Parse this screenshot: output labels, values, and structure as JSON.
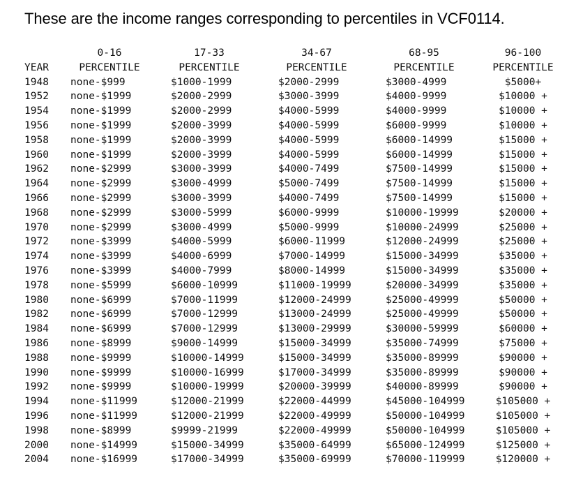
{
  "title": "These are the income ranges corresponding to percentiles in VCF0114.",
  "table": {
    "header_top": [
      "",
      "0-16",
      "17-33",
      "34-67",
      "68-95",
      "96-100"
    ],
    "header_bottom": [
      "YEAR",
      "PERCENTILE",
      "PERCENTILE",
      "PERCENTILE",
      "PERCENTILE",
      "PERCENTILE"
    ],
    "rows": [
      [
        "1948",
        "none-$999",
        "$1000-1999",
        "$2000-2999",
        "$3000-4999",
        "$5000+"
      ],
      [
        "1952",
        "none-$1999",
        "$2000-2999",
        "$3000-3999",
        "$4000-9999",
        "$10000 +"
      ],
      [
        "1954",
        "none-$1999",
        "$2000-2999",
        "$4000-5999",
        "$4000-9999",
        "$10000 +"
      ],
      [
        "1956",
        "none-$1999",
        "$2000-3999",
        "$4000-5999",
        "$6000-9999",
        "$10000 +"
      ],
      [
        "1958",
        "none-$1999",
        "$2000-3999",
        "$4000-5999",
        "$6000-14999",
        "$15000 +"
      ],
      [
        "1960",
        "none-$1999",
        "$2000-3999",
        "$4000-5999",
        "$6000-14999",
        "$15000 +"
      ],
      [
        "1962",
        "none-$2999",
        "$3000-3999",
        "$4000-7499",
        "$7500-14999",
        "$15000 +"
      ],
      [
        "1964",
        "none-$2999",
        "$3000-4999",
        "$5000-7499",
        "$7500-14999",
        "$15000 +"
      ],
      [
        "1966",
        "none-$2999",
        "$3000-3999",
        "$4000-7499",
        "$7500-14999",
        "$15000 +"
      ],
      [
        "1968",
        "none-$2999",
        "$3000-5999",
        "$6000-9999",
        "$10000-19999",
        "$20000 +"
      ],
      [
        "1970",
        "none-$2999",
        "$3000-4999",
        "$5000-9999",
        "$10000-24999",
        "$25000 +"
      ],
      [
        "1972",
        "none-$3999",
        "$4000-5999",
        "$6000-11999",
        "$12000-24999",
        "$25000 +"
      ],
      [
        "1974",
        "none-$3999",
        "$4000-6999",
        "$7000-14999",
        "$15000-34999",
        "$35000 +"
      ],
      [
        "1976",
        "none-$3999",
        "$4000-7999",
        "$8000-14999",
        "$15000-34999",
        "$35000 +"
      ],
      [
        "1978",
        "none-$5999",
        "$6000-10999",
        "$11000-19999",
        "$20000-34999",
        "$35000 +"
      ],
      [
        "1980",
        "none-$6999",
        "$7000-11999",
        "$12000-24999",
        "$25000-49999",
        "$50000 +"
      ],
      [
        "1982",
        "none-$6999",
        "$7000-12999",
        "$13000-24999",
        "$25000-49999",
        "$50000 +"
      ],
      [
        "1984",
        "none-$6999",
        "$7000-12999",
        "$13000-29999",
        "$30000-59999",
        "$60000 +"
      ],
      [
        "1986",
        "none-$8999",
        "$9000-14999",
        "$15000-34999",
        "$35000-74999",
        "$75000 +"
      ],
      [
        "1988",
        "none-$9999",
        "$10000-14999",
        "$15000-34999",
        "$35000-89999",
        "$90000 +"
      ],
      [
        "1990",
        "none-$9999",
        "$10000-16999",
        "$17000-34999",
        "$35000-89999",
        "$90000 +"
      ],
      [
        "1992",
        "none-$9999",
        "$10000-19999",
        "$20000-39999",
        "$40000-89999",
        "$90000 +"
      ],
      [
        "1994",
        "none-$11999",
        "$12000-21999",
        "$22000-44999",
        "$45000-104999",
        "$105000 +"
      ],
      [
        "1996",
        "none-$11999",
        "$12000-21999",
        "$22000-49999",
        "$50000-104999",
        "$105000 +"
      ],
      [
        "1998",
        "none-$8999",
        "$9999-21999",
        "$22000-49999",
        "$50000-104999",
        "$105000 +"
      ],
      [
        "2000",
        "none-$14999",
        "$15000-34999",
        "$35000-64999",
        "$65000-124999",
        "$125000 +"
      ],
      [
        "2004",
        "none-$16999",
        "$17000-34999",
        "$35000-69999",
        "$70000-119999",
        "$120000 +"
      ]
    ]
  }
}
